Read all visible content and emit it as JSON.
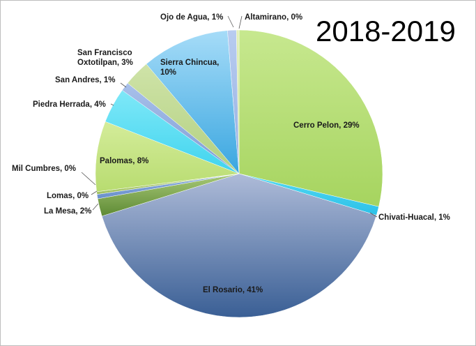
{
  "chart_data": {
    "type": "pie",
    "title": "2018-2019",
    "slices": [
      {
        "name": "Cerro Pelon",
        "value": 29,
        "label": "Cerro Pelon, 29%",
        "color": "#c7e88f",
        "color_dark": "#a6d45f"
      },
      {
        "name": "Chivati-Huacal",
        "value": 1,
        "label": "Chivati-Huacal, 1%",
        "color": "#55d9f2",
        "color_dark": "#2cc1e8"
      },
      {
        "name": "El Rosario",
        "value": 41,
        "label": "El Rosario, 41%",
        "color": "#aebbd8",
        "color_dark": "#3a5f95"
      },
      {
        "name": "La Mesa",
        "value": 2,
        "label": "La Mesa, 2%",
        "color": "#a8c978",
        "color_dark": "#5e8a34"
      },
      {
        "name": "Lomas",
        "value": 0.5,
        "label": "Lomas, 0%",
        "color": "#8fb0e0",
        "color_dark": "#6a90cc"
      },
      {
        "name": "Mil Cumbres",
        "value": 0.3,
        "label": "Mil Cumbres, 0%",
        "color": "#c0d890",
        "color_dark": "#a0c060"
      },
      {
        "name": "Palomas",
        "value": 8,
        "label": "Palomas, 8%",
        "color": "#d4ec9a",
        "color_dark": "#b8dc70"
      },
      {
        "name": "Piedra Herrada",
        "value": 4,
        "label": "Piedra Herrada, 4%",
        "color": "#7fe8f8",
        "color_dark": "#40d4ee"
      },
      {
        "name": "San Andres",
        "value": 1,
        "label": "San Andres, 1%",
        "color": "#a8c0ea",
        "color_dark": "#7f9cd4"
      },
      {
        "name": "San Francisco Oxtotilpan",
        "value": 3,
        "label_lines": [
          "San Francisco",
          "Oxtotilpan, 3%"
        ],
        "color": "#cfe3a8",
        "color_dark": "#b2d080"
      },
      {
        "name": "Sierra Chincua",
        "value": 10,
        "label_lines": [
          "Sierra Chincua,",
          "10%"
        ],
        "color": "#a6dcf8",
        "color_dark": "#3aa6e0"
      },
      {
        "name": "Ojo de Agua",
        "value": 1,
        "label": "Ojo de Agua, 1%",
        "color": "#b8ccf0",
        "color_dark": "#96b0e2"
      },
      {
        "name": "Altamirano",
        "value": 0.3,
        "label": "Altamirano, 0%",
        "color": "#e2f0b8",
        "color_dark": "#c8e08a"
      }
    ],
    "start_angle_deg": 0,
    "direction": "clockwise",
    "legend": "none",
    "data_labels": "name, percent"
  }
}
